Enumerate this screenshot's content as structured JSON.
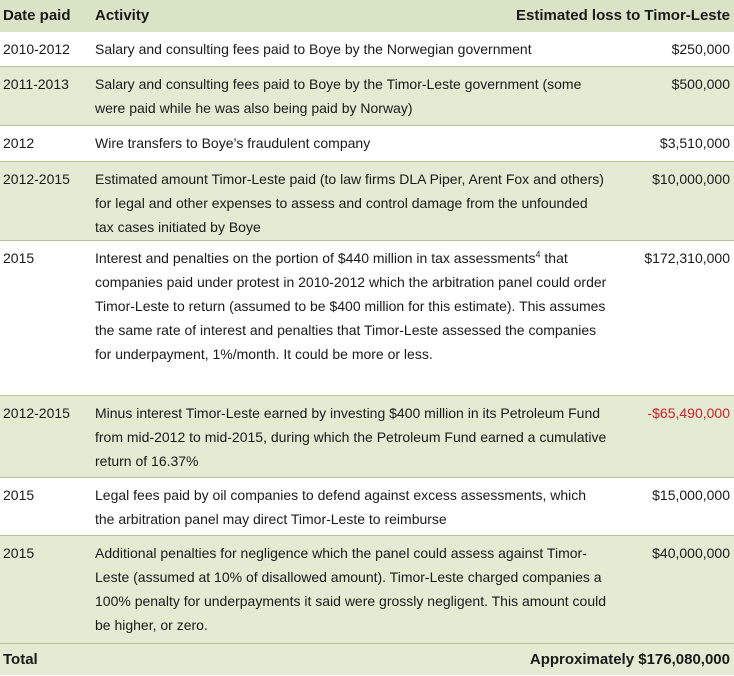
{
  "header": {
    "date": "Date paid",
    "activity": "Activity",
    "amount": "Estimated loss to Timor-Leste"
  },
  "rows": [
    {
      "date": "2010-2012",
      "activity": "Salary and consulting fees paid to Boye by the Norwegian government",
      "amount": "$250,000"
    },
    {
      "date": "2011-2013",
      "activity": "Salary and consulting fees paid to Boye by the Timor-Leste government (some were paid while he was also being paid by Norway)",
      "amount": "$500,000"
    },
    {
      "date": "2012",
      "activity": "Wire transfers to Boye’s fraudulent company",
      "amount": "$3,510,000"
    },
    {
      "date": "2012-2015",
      "activity": "Estimated amount Timor-Leste paid (to law firms DLA Piper, Arent Fox and others) for legal and other expenses to assess and control damage from the unfounded tax cases initiated by Boye",
      "amount": "$10,000,000"
    },
    {
      "date": "2015",
      "activity": "Interest and penalties on the portion of $440 million in tax assessments",
      "footnote": "4",
      "activity_continued": " that companies paid under protest in 2010-2012 which the arbitration panel could order Timor-Leste to return (assumed to be $400 million for this estimate). This assumes the same rate of interest and penalties that Timor-Leste assessed the companies for underpayment, 1%/month. It could be more or less.",
      "amount": "$172,310,000"
    },
    {
      "date": "2012-2015",
      "activity": "Minus interest Timor-Leste earned by investing $400 million in its Petroleum Fund from mid-2012 to mid-2015, during which the Petroleum Fund earned a cumulative return of 16.37%",
      "amount": "-$65,490,000"
    },
    {
      "date": "2015",
      "activity": "Legal fees paid by oil companies to defend against excess assessments, which the arbitration panel may direct Timor-Leste to reimburse",
      "amount": "$15,000,000"
    },
    {
      "date": "2015",
      "activity": "Additional penalties for negligence which the panel could assess against Timor-Leste (assumed at 10% of disallowed amount). Timor-Leste charged companies a 100% penalty for underpayments it said were grossly negligent. This amount could be higher, or zero.",
      "amount": "$40,000,000"
    }
  ],
  "total": {
    "label": "Total",
    "amount": "Approximately $176,080,000"
  }
}
